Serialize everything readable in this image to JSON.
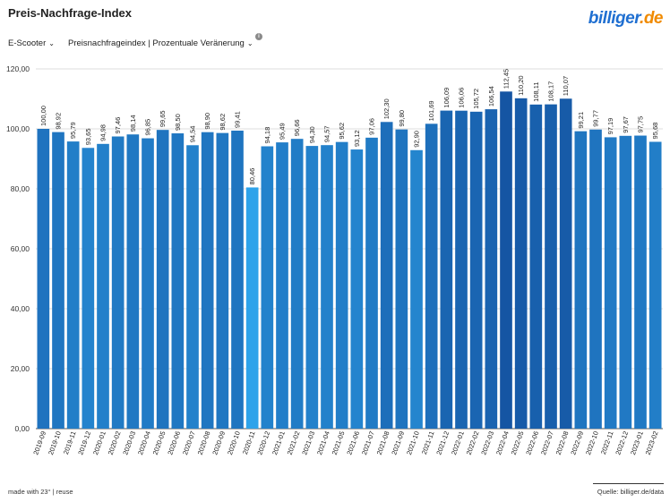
{
  "header": {
    "title": "Preis-Nachfrage-Index",
    "logo_part1": "billiger",
    "logo_part2": ".de"
  },
  "filters": {
    "category": "E-Scooter",
    "metric": "Preisnachfrageindex | Prozentuale Veränerung",
    "info_glyph": "i"
  },
  "footer": {
    "left": "made with 23° | reuse",
    "right": "Quelle: billiger.de/data"
  },
  "colors": {
    "bar_light": "#2ea3ea",
    "bar_dark": "#1555a3",
    "grid": "#dddddd",
    "axis": "#555555"
  },
  "chart_data": {
    "type": "bar",
    "title": "",
    "xlabel": "",
    "ylabel": "",
    "ylim": [
      0,
      120
    ],
    "yticks": [
      "0,00",
      "20,00",
      "40,00",
      "60,00",
      "80,00",
      "100,00",
      "120,00"
    ],
    "categories": [
      "2019-09",
      "2019-10",
      "2019-11",
      "2019-12",
      "2020-01",
      "2020-02",
      "2020-03",
      "2020-04",
      "2020-05",
      "2020-06",
      "2020-07",
      "2020-08",
      "2020-09",
      "2020-10",
      "2020-11",
      "2020-12",
      "2021-01",
      "2021-02",
      "2021-03",
      "2021-04",
      "2021-05",
      "2021-06",
      "2021-07",
      "2021-08",
      "2021-09",
      "2021-10",
      "2021-11",
      "2021-12",
      "2022-01",
      "2022-02",
      "2022-03",
      "2022-04",
      "2022-05",
      "2022-06",
      "2022-07",
      "2022-08",
      "2022-09",
      "2022-10",
      "2022-11",
      "2022-12",
      "2023-01",
      "2023-02"
    ],
    "values": [
      100.0,
      98.92,
      95.79,
      93.65,
      94.98,
      97.46,
      98.14,
      96.85,
      99.65,
      98.5,
      94.54,
      98.9,
      98.62,
      99.41,
      80.46,
      94.18,
      95.49,
      96.66,
      94.3,
      94.57,
      95.62,
      93.12,
      97.06,
      102.3,
      99.8,
      92.9,
      101.69,
      106.09,
      106.06,
      105.72,
      106.54,
      112.45,
      110.2,
      108.11,
      108.17,
      110.07,
      99.21,
      99.77,
      97.19,
      97.67,
      97.75,
      95.68
    ],
    "labels": [
      "100,00",
      "98,92",
      "95,79",
      "93,65",
      "94,98",
      "97,46",
      "98,14",
      "96,85",
      "99,65",
      "98,50",
      "94,54",
      "98,90",
      "98,62",
      "99,41",
      "80,46",
      "94,18",
      "95,49",
      "96,66",
      "94,30",
      "94,57",
      "95,62",
      "93,12",
      "97,06",
      "102,30",
      "99,80",
      "92,90",
      "101,69",
      "106,09",
      "106,06",
      "105,72",
      "106,54",
      "112,45",
      "110,20",
      "108,11",
      "108,17",
      "110,07",
      "99,21",
      "99,77",
      "97,19",
      "97,67",
      "97,75",
      "95,68"
    ],
    "grid": true,
    "legend": "none"
  }
}
